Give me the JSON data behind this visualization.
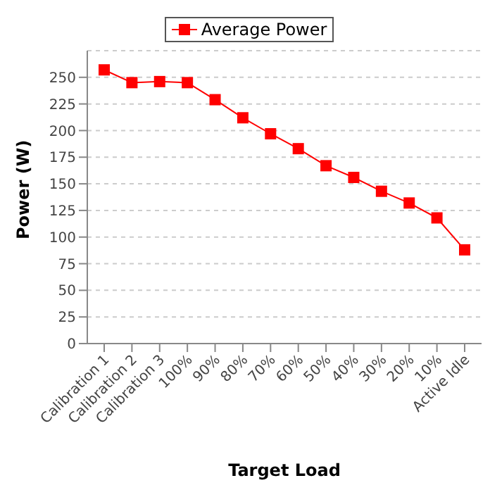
{
  "chart_data": {
    "type": "line",
    "xlabel": "Target Load",
    "ylabel": "Power (W)",
    "categories": [
      "Calibration 1",
      "Calibration 2",
      "Calibration 3",
      "100%",
      "90%",
      "80%",
      "70%",
      "60%",
      "50%",
      "40%",
      "30%",
      "20%",
      "10%",
      "Active Idle"
    ],
    "series": [
      {
        "name": "Average Power",
        "color": "#ff0000",
        "values": [
          257,
          245,
          246,
          245,
          229,
          212,
          197,
          183,
          167,
          156,
          143,
          132,
          118,
          88
        ]
      }
    ],
    "ylim": [
      0,
      275
    ],
    "yticks": [
      0,
      25,
      50,
      75,
      100,
      125,
      150,
      175,
      200,
      225,
      250
    ],
    "grid": "y",
    "legend": "top",
    "marker": "square",
    "line_style": "solid"
  }
}
